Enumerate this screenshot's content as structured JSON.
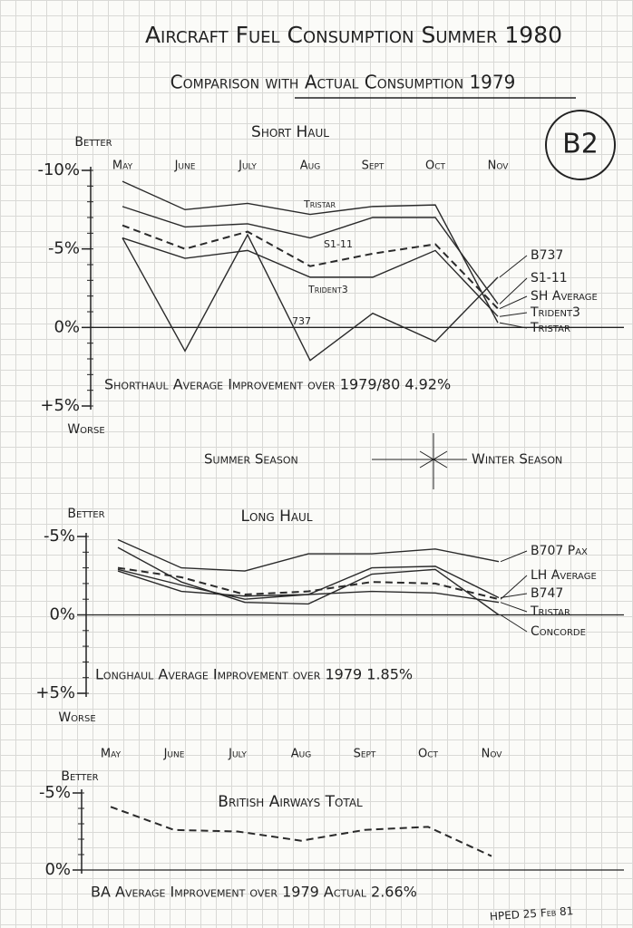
{
  "header": {
    "title": "Aircraft Fuel Consumption Summer 1980",
    "subtitle": "Comparison with Actual Consumption 1979",
    "badge": "B2",
    "signature": "HPED 25 Feb 81"
  },
  "seasons": [
    "Summer Season",
    "Winter Season"
  ],
  "chart_data": [
    {
      "type": "line",
      "title": "Short Haul",
      "y_label_top": "Better",
      "y_label_bottom": "Worse",
      "categories": [
        "May",
        "June",
        "July",
        "Aug",
        "Sept",
        "Oct",
        "Nov"
      ],
      "ylim": [
        5,
        -10
      ],
      "yticks": [
        {
          "value": -10,
          "label": "-10%"
        },
        {
          "value": -5,
          "label": "-5%"
        },
        {
          "value": 0,
          "label": "0%"
        },
        {
          "value": 5,
          "label": "+5%"
        }
      ],
      "series": [
        {
          "name": "B737",
          "color": "#2a2a2a",
          "dashed": false,
          "values": [
            -5.7,
            1.5,
            -5.9,
            2.1,
            -0.9,
            0.9,
            -3.2
          ]
        },
        {
          "name": "S1-11",
          "color": "#2a2a2a",
          "dashed": false,
          "values": [
            -7.7,
            -6.4,
            -6.6,
            -5.7,
            -7.0,
            -7.0,
            -1.5
          ]
        },
        {
          "name": "SH Average",
          "color": "#2a2a2a",
          "dashed": true,
          "values": [
            -6.5,
            -5.0,
            -6.1,
            -3.9,
            -4.7,
            -5.3,
            -1.2
          ]
        },
        {
          "name": "Trident3",
          "color": "#2a2a2a",
          "dashed": false,
          "values": [
            -5.7,
            -4.4,
            -4.9,
            -3.2,
            -3.2,
            -4.9,
            -0.7
          ]
        },
        {
          "name": "Tristar",
          "color": "#2a2a2a",
          "dashed": false,
          "values": [
            -9.3,
            -7.5,
            -7.9,
            -7.2,
            -7.7,
            -7.8,
            -0.3
          ]
        }
      ],
      "line_labels": [
        "Tristar",
        "S1-11",
        "Trident3",
        "737"
      ],
      "annotation": "Shorthaul Average Improvement over 1979/80 4.92%"
    },
    {
      "type": "line",
      "title": "Long Haul",
      "y_label_top": "Better",
      "y_label_bottom": "Worse",
      "categories": [
        null,
        null,
        null,
        null,
        null,
        null,
        null
      ],
      "ylim": [
        5,
        -5
      ],
      "yticks": [
        {
          "value": -5,
          "label": "-5%"
        },
        {
          "value": 0,
          "label": "0%"
        },
        {
          "value": 5,
          "label": "+5%"
        }
      ],
      "series": [
        {
          "name": "B707 Pax",
          "color": "#2a2a2a",
          "dashed": false,
          "values": [
            -4.8,
            -3.0,
            -2.8,
            -3.9,
            -3.9,
            -4.2,
            -3.4
          ]
        },
        {
          "name": "LH Average",
          "color": "#2a2a2a",
          "dashed": true,
          "values": [
            -3.0,
            -2.4,
            -1.3,
            -1.5,
            -2.1,
            -2.0,
            -1.0
          ]
        },
        {
          "name": "B747",
          "color": "#2a2a2a",
          "dashed": false,
          "values": [
            -2.9,
            -1.9,
            -1.0,
            -1.3,
            -3.0,
            -3.1,
            -1.1
          ]
        },
        {
          "name": "Tristar",
          "color": "#2a2a2a",
          "dashed": false,
          "values": [
            -2.8,
            -1.5,
            -1.2,
            -1.3,
            -1.5,
            -1.4,
            -0.8
          ]
        },
        {
          "name": "Concorde",
          "color": "#2a2a2a",
          "dashed": false,
          "values": [
            -4.3,
            -2.1,
            -0.8,
            -0.7,
            -2.6,
            -2.9,
            0
          ]
        }
      ],
      "annotation": "Longhaul Average Improvement over 1979 1.85%"
    },
    {
      "type": "line",
      "title": "British Airways Total",
      "y_label_top": "Better",
      "categories": [
        "May",
        "June",
        "July",
        "Aug",
        "Sept",
        "Oct",
        "Nov"
      ],
      "ylim": [
        0,
        -5
      ],
      "yticks": [
        {
          "value": -5,
          "label": "-5%"
        },
        {
          "value": 0,
          "label": "0%"
        }
      ],
      "series": [
        {
          "color": "#2a2a2a",
          "dashed": true,
          "values": [
            -4.1,
            -2.6,
            -2.5,
            -1.9,
            -2.6,
            -2.8,
            -0.9
          ]
        }
      ],
      "annotation": "BA Average Improvement over 1979 Actual 2.66%"
    }
  ]
}
